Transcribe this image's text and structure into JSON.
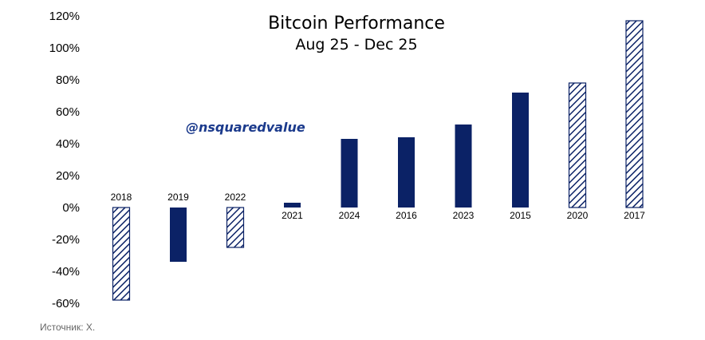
{
  "watermark": "@nsquaredvalue",
  "source_note": "Источник: X.",
  "colors": {
    "solid": "#0b2266",
    "hatch": "#0b2266",
    "hatch_bg": "#ffffff"
  },
  "chart_data": {
    "type": "bar",
    "title": "Bitcoin Performance",
    "subtitle": "Aug 25 - Dec 25",
    "xlabel": "",
    "ylabel": "",
    "ylim": [
      -60,
      120
    ],
    "yticks": [
      120,
      100,
      80,
      60,
      40,
      20,
      0,
      -20,
      -40,
      -60
    ],
    "ytick_labels": [
      "120%",
      "100%",
      "80%",
      "60%",
      "40%",
      "20%",
      "0%",
      "-20%",
      "-40%",
      "-60%"
    ],
    "grid": false,
    "legend": "none",
    "categories": [
      "2018",
      "2019",
      "2022",
      "2021",
      "2024",
      "2016",
      "2023",
      "2015",
      "2020",
      "2017"
    ],
    "values": [
      -58,
      -34,
      -25,
      3,
      43,
      44,
      52,
      72,
      78,
      117
    ],
    "styles": [
      "hatch",
      "solid",
      "hatch",
      "solid",
      "solid",
      "solid",
      "solid",
      "solid",
      "hatch",
      "hatch"
    ]
  }
}
